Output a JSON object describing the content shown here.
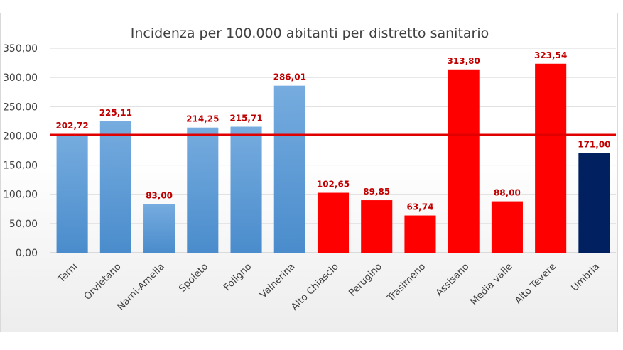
{
  "chart_data": {
    "type": "bar",
    "title": "Incidenza per 100.000 abitanti per distretto sanitario",
    "xlabel": "",
    "ylabel": "",
    "ylim": [
      0,
      350
    ],
    "yticks": [
      0,
      50,
      100,
      150,
      200,
      250,
      300,
      350
    ],
    "ytick_labels": [
      "0,00",
      "50,00",
      "100,00",
      "150,00",
      "200,00",
      "250,00",
      "300,00",
      "350,00"
    ],
    "categories": [
      "Terni",
      "Orvietano",
      "Narni-Amelia",
      "Spoleto",
      "Foligno",
      "Valnerina",
      "Alto Chiascio",
      "Perugino",
      "Trasimeno",
      "Assisano",
      "Media valle",
      "Alto Tevere",
      "Umbria"
    ],
    "values": [
      202.72,
      225.11,
      83.0,
      214.25,
      215.71,
      286.01,
      102.65,
      89.85,
      63.74,
      313.8,
      88.0,
      323.54,
      171.0
    ],
    "value_labels": [
      "202,72",
      "225,11",
      "83,00",
      "214,25",
      "215,71",
      "286,01",
      "102,65",
      "89,85",
      "63,74",
      "313,80",
      "88,00",
      "323,54",
      "171,00"
    ],
    "bar_colors": [
      "#5b9bd5",
      "#5b9bd5",
      "#5b9bd5",
      "#5b9bd5",
      "#5b9bd5",
      "#5b9bd5",
      "#ff0000",
      "#ff0000",
      "#ff0000",
      "#ff0000",
      "#ff0000",
      "#ff0000",
      "#002060"
    ],
    "reference_line": {
      "value": 202.0,
      "color": "#e00000"
    },
    "grid": true,
    "gridline_color": "#d9d9d9",
    "legend": "none"
  }
}
